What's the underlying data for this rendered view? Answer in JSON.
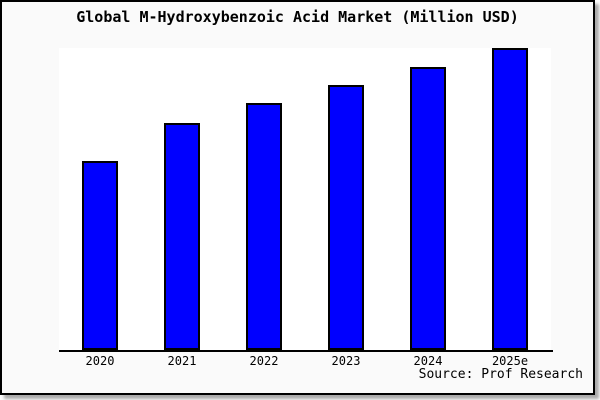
{
  "chart_data": {
    "type": "bar",
    "title": "Global M-Hydroxybenzoic Acid Market (Million USD)",
    "categories": [
      "2020",
      "2021",
      "2022",
      "2023",
      "2024",
      "2025e"
    ],
    "values": [
      62.7,
      75.3,
      81.7,
      87.7,
      93.7,
      100
    ],
    "value_basis": "relative index estimated from bar heights (2025e = 100); chart shows no y-axis ticks, gridlines or data labels",
    "xlabel": "",
    "ylabel": "",
    "ylim": [
      0,
      100
    ],
    "grid": false,
    "legend": false,
    "y_axis_visible": false,
    "bar_fill": "#0000ff",
    "bar_border": "#000000"
  },
  "footer": {
    "source_label": "Source: Prof Research"
  },
  "colors": {
    "frame_background": "#fafafa",
    "plot_background": "#ffffff",
    "frame_border": "#000000",
    "axis": "#000000",
    "text": "#000000"
  }
}
